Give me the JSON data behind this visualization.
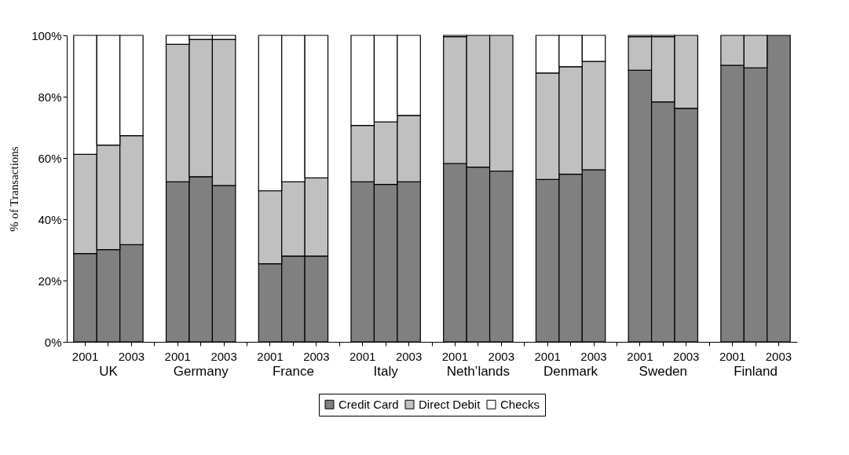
{
  "chart_data": {
    "type": "bar",
    "stacked": true,
    "ylabel": "% of Transactions",
    "categories": [
      "2001",
      null,
      "2003",
      "2001",
      null,
      "2003",
      "2001",
      null,
      "2003",
      "2001",
      null,
      "2003",
      "2001",
      null,
      "2003",
      "2001",
      null,
      "2003",
      "2001",
      null,
      "2003",
      "2001",
      null,
      "2003"
    ],
    "annotations": [
      "UK",
      "Germany",
      "France",
      "Italy",
      "Neth’lands",
      "Denmark",
      "Sweden",
      "Finland"
    ],
    "series": [
      {
        "name": "Credit Card",
        "color": "#808080",
        "values": [
          28.8,
          30.1,
          31.7,
          52.2,
          53.9,
          51.0,
          25.5,
          28.0,
          28.0,
          52.2,
          51.4,
          52.2,
          58.2,
          57.0,
          55.7,
          53.0,
          54.7,
          56.1,
          88.6,
          78.3,
          76.2,
          90.2,
          89.4,
          100
        ]
      },
      {
        "name": "Direct Debit",
        "color": "#c0c0c0",
        "values": [
          32.4,
          34.1,
          35.6,
          44.9,
          44.8,
          47.7,
          23.8,
          24.2,
          25.5,
          18.4,
          20.4,
          21.7,
          41.4,
          43.0,
          44.3,
          34.7,
          35.1,
          35.4,
          11.0,
          21.3,
          23.8,
          9.8,
          10.6,
          0
        ]
      },
      {
        "name": "Checks",
        "color": "#ffffff",
        "values": [
          38.8,
          35.8,
          32.7,
          2.9,
          1.3,
          1.3,
          50.7,
          47.8,
          46.5,
          29.4,
          28.2,
          26.1,
          0.4,
          0,
          0,
          12.3,
          10.2,
          8.5,
          0.4,
          0.4,
          0,
          0,
          0,
          0
        ]
      }
    ],
    "ylim": [
      0,
      100
    ],
    "yticks": [
      {
        "value": 0,
        "label": "0%"
      },
      {
        "value": 20,
        "label": "20%"
      },
      {
        "value": 40,
        "label": "40%"
      },
      {
        "value": 60,
        "label": "60%"
      },
      {
        "value": 80,
        "label": "80%"
      },
      {
        "value": 100,
        "label": "100%"
      }
    ],
    "legend": "bottom",
    "grid": false
  }
}
